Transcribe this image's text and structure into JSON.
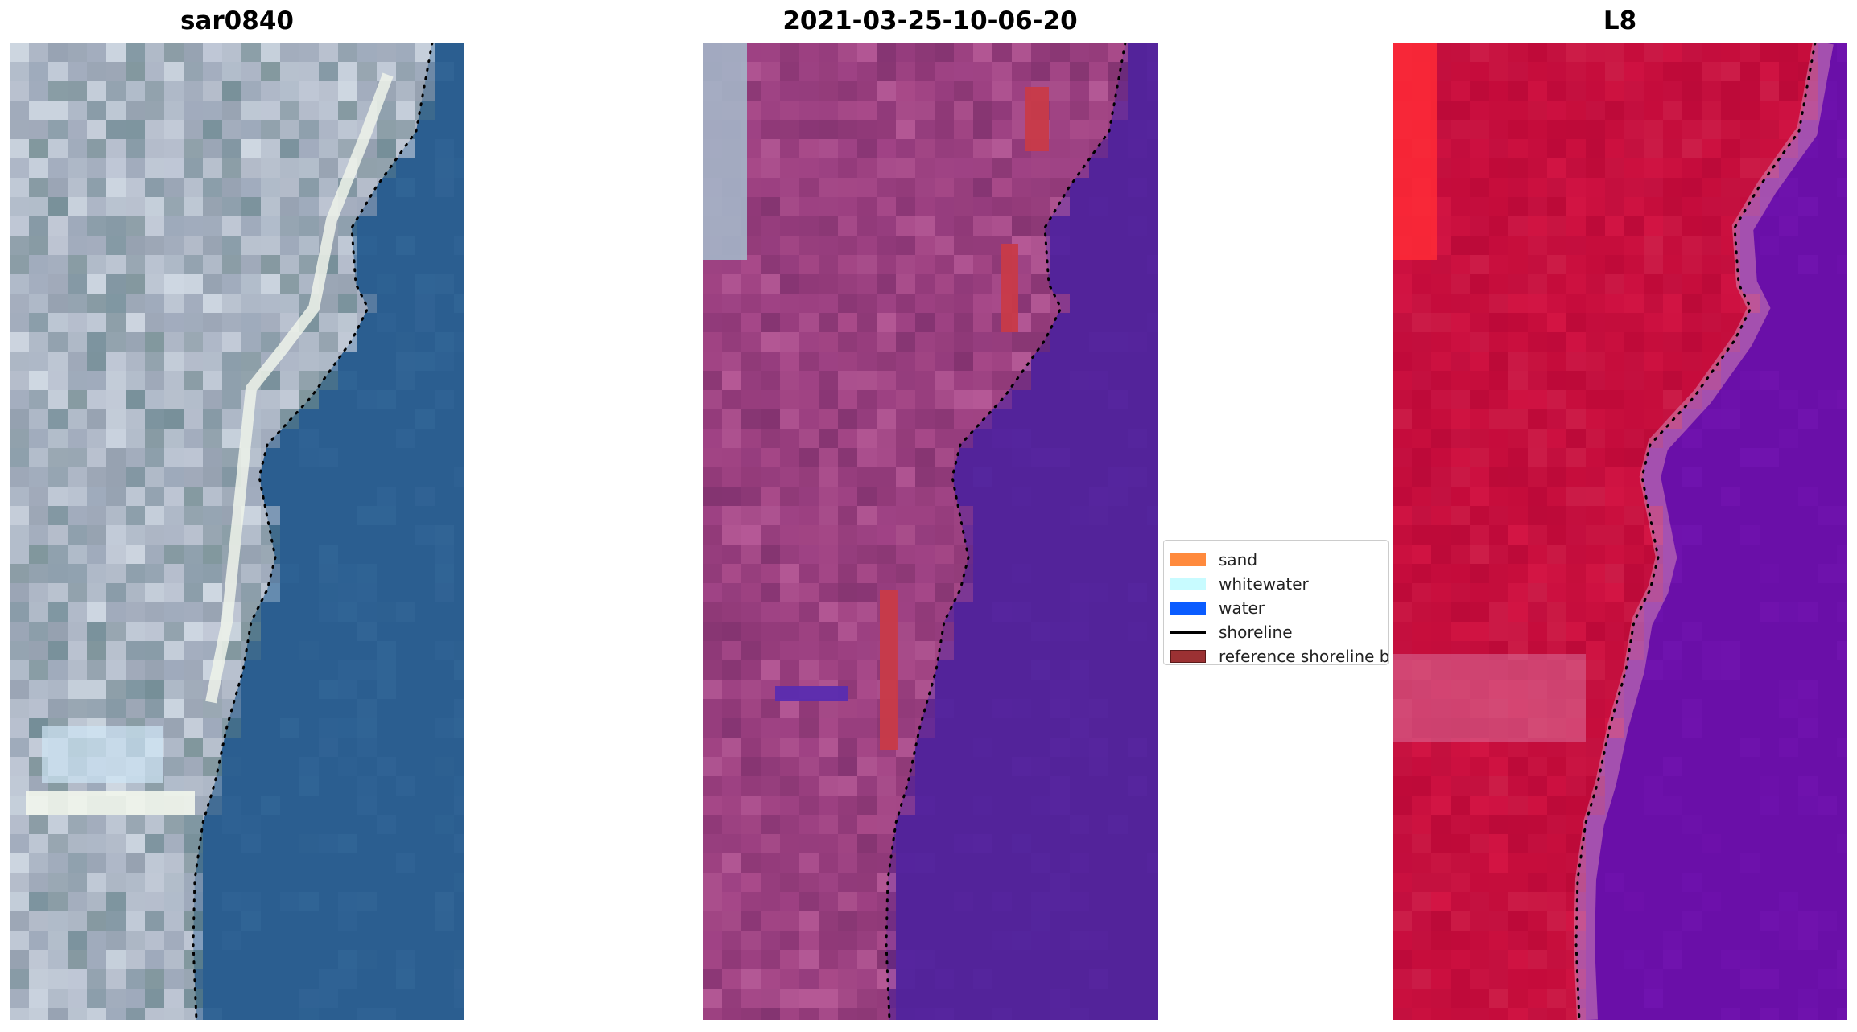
{
  "figure": {
    "panels": [
      {
        "id": "rgb",
        "title": "sar0840"
      },
      {
        "id": "classified",
        "title": "2021-03-25-10-06-20"
      },
      {
        "id": "mndwi",
        "title": "L8"
      }
    ]
  },
  "legend": {
    "items": [
      {
        "label": "sand",
        "color": "#ff8a3d",
        "kind": "patch"
      },
      {
        "label": "whitewater",
        "color": "#c8fbff",
        "kind": "patch"
      },
      {
        "label": "water",
        "color": "#0a5cff",
        "kind": "patch"
      },
      {
        "label": "shoreline",
        "color": "#000000",
        "kind": "line"
      },
      {
        "label": "reference shoreline buffer",
        "color": "#9b3133",
        "kind": "patch"
      }
    ]
  },
  "colors": {
    "sea_rgb": "#2b5e90",
    "land_rgb": "#a9b2c2",
    "sea_classified": "#53239a",
    "land_classified": "#9a3f7f",
    "sea_index": "#6a0fa8",
    "land_index": "#c40b3b"
  }
}
